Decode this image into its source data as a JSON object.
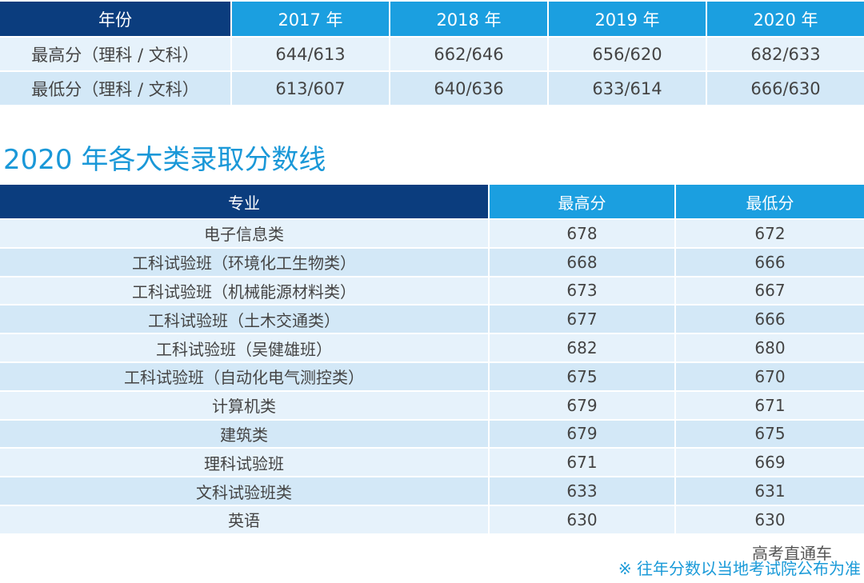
{
  "table1": {
    "headers": [
      "年份",
      "2017 年",
      "2018 年",
      "2019 年",
      "2020 年"
    ],
    "rows": [
      {
        "label": "最高分（理科 / 文科）",
        "values": [
          "644/613",
          "662/646",
          "656/620",
          "682/633"
        ]
      },
      {
        "label": "最低分（理科 / 文科）",
        "values": [
          "613/607",
          "640/636",
          "633/614",
          "666/630"
        ]
      }
    ]
  },
  "section_title": "2020 年各大类录取分数线",
  "table2": {
    "headers": [
      "专业",
      "最高分",
      "最低分"
    ],
    "rows": [
      [
        "电子信息类",
        "678",
        "672"
      ],
      [
        "工科试验班（环境化工生物类）",
        "668",
        "666"
      ],
      [
        "工科试验班（机械能源材料类）",
        "673",
        "667"
      ],
      [
        "工科试验班（土木交通类）",
        "677",
        "666"
      ],
      [
        "工科试验班（吴健雄班）",
        "682",
        "680"
      ],
      [
        "工科试验班（自动化电气测控类）",
        "675",
        "670"
      ],
      [
        "计算机类",
        "679",
        "671"
      ],
      [
        "建筑类",
        "679",
        "675"
      ],
      [
        "理科试验班",
        "671",
        "669"
      ],
      [
        "文科试验班类",
        "633",
        "631"
      ],
      [
        "英语",
        "630",
        "630"
      ]
    ]
  },
  "watermark": "高考直通车",
  "note": "※ 往年分数以当地考试院公布为准",
  "colors": {
    "dark_header": "#0b3d7e",
    "light_header": "#1b9fe0",
    "title": "#1a98d8"
  }
}
